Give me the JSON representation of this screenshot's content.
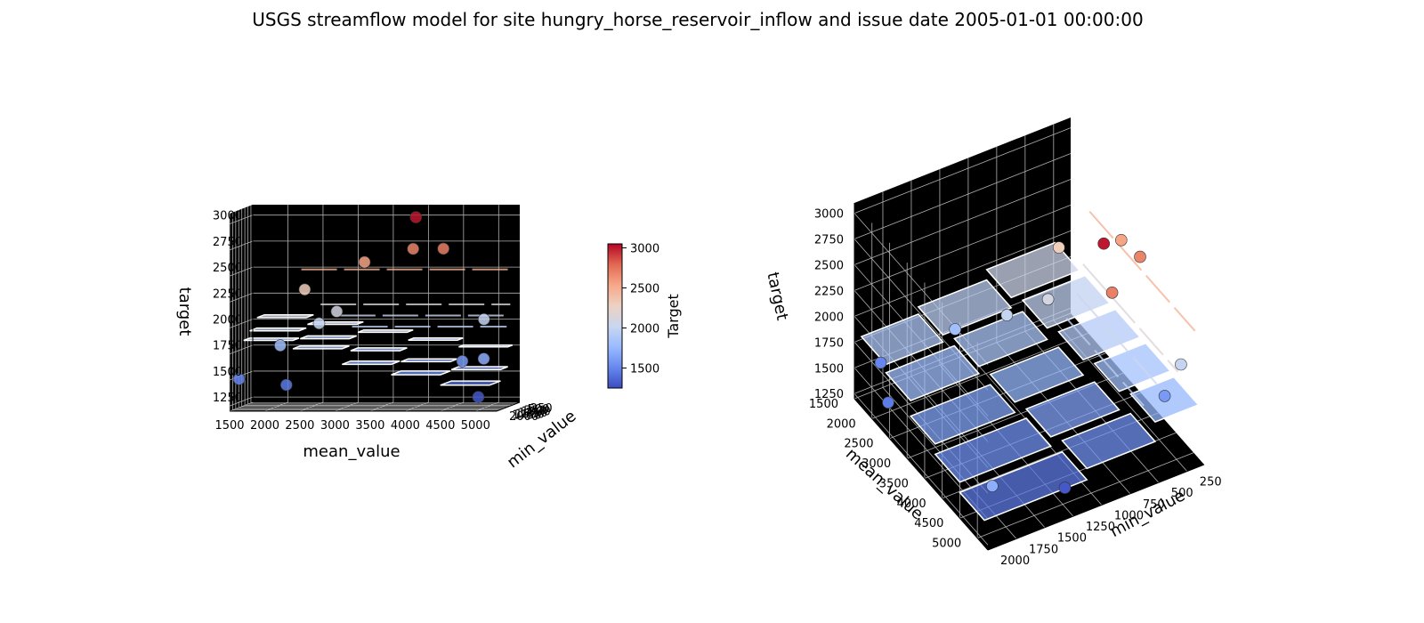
{
  "figure": {
    "title": "USGS streamflow model for site hungry_horse_reservoir_inflow and issue date 2005-01-01 00:00:00"
  },
  "colormap": {
    "name": "coolwarm",
    "stops": [
      "#3b4cc0",
      "#6788ee",
      "#9abbff",
      "#c9d7f0",
      "#edd1c2",
      "#f7a889",
      "#e26952",
      "#b40426"
    ]
  },
  "chart_data": {
    "type": "scatter",
    "title": "USGS streamflow model for site hungry_horse_reservoir_inflow and issue date 2005-01-01 00:00:00",
    "xlabel": "mean_value",
    "ylabel": "min_value",
    "zlabel": "target",
    "xlim": [
      1500,
      5300
    ],
    "ylim": [
      2000,
      100
    ],
    "zlim": [
      1200,
      3100
    ],
    "x_ticks": [
      "1500",
      "2000",
      "2500",
      "3000",
      "3500",
      "4000",
      "4500",
      "5000"
    ],
    "y_ticks": [
      "250",
      "500",
      "750",
      "1000",
      "1250",
      "1500",
      "1750",
      "2000"
    ],
    "z_ticks": [
      "1250",
      "1500",
      "1750",
      "2000",
      "2250",
      "2500",
      "2750",
      "3000"
    ],
    "grid": true,
    "colorbar": {
      "label": "Target",
      "range": [
        1250,
        3050
      ],
      "ticks": [
        "1500",
        "2000",
        "2500",
        "3000"
      ]
    },
    "points": [
      {
        "x": 1600,
        "y": 1800,
        "z": 1500
      },
      {
        "x": 2100,
        "y": 1300,
        "z": 1800
      },
      {
        "x": 2300,
        "y": 1950,
        "z": 1450
      },
      {
        "x": 2600,
        "y": 1000,
        "z": 2000
      },
      {
        "x": 2300,
        "y": 450,
        "z": 2300
      },
      {
        "x": 3800,
        "y": 200,
        "z": 2680
      },
      {
        "x": 3100,
        "y": 150,
        "z": 2550
      },
      {
        "x": 3900,
        "y": 550,
        "z": 3000
      },
      {
        "x": 4900,
        "y": 1200,
        "z": 1300
      },
      {
        "x": 4500,
        "y": 200,
        "z": 1600
      },
      {
        "x": 4800,
        "y": 150,
        "z": 2000
      },
      {
        "x": 5100,
        "y": 1900,
        "z": 1700
      },
      {
        "x": 4300,
        "y": 600,
        "z": 2700
      },
      {
        "x": 2800,
        "y": 700,
        "z": 2100
      }
    ],
    "surface": {
      "description_free": true,
      "cells": [
        {
          "x": [
            1700,
            2400
          ],
          "y": [
            1500,
            2000
          ],
          "z": 1880
        },
        {
          "x": [
            2400,
            3100
          ],
          "y": [
            1400,
            2000
          ],
          "z": 1800
        },
        {
          "x": [
            3100,
            3800
          ],
          "y": [
            1300,
            2000
          ],
          "z": 1650
        },
        {
          "x": [
            3800,
            4500
          ],
          "y": [
            1200,
            2000
          ],
          "z": 1550
        },
        {
          "x": [
            4500,
            5200
          ],
          "y": [
            1100,
            2000
          ],
          "z": 1450
        },
        {
          "x": [
            1700,
            2400
          ],
          "y": [
            900,
            1500
          ],
          "z": 1950
        },
        {
          "x": [
            2400,
            3100
          ],
          "y": [
            800,
            1400
          ],
          "z": 1870
        },
        {
          "x": [
            3100,
            3800
          ],
          "y": [
            700,
            1300
          ],
          "z": 1750
        },
        {
          "x": [
            3800,
            4500
          ],
          "y": [
            600,
            1200
          ],
          "z": 1640
        },
        {
          "x": [
            4500,
            5200
          ],
          "y": [
            500,
            1100
          ],
          "z": 1560
        },
        {
          "x": [
            1700,
            2400
          ],
          "y": [
            300,
            900
          ],
          "z": 2050
        },
        {
          "x": [
            2400,
            3100
          ],
          "y": [
            250,
            800
          ],
          "z": 1980
        },
        {
          "x": [
            3100,
            3800
          ],
          "y": [
            200,
            700
          ],
          "z": 1900
        },
        {
          "x": [
            3800,
            4500
          ],
          "y": [
            150,
            600
          ],
          "z": 1820
        },
        {
          "x": [
            4500,
            5200
          ],
          "y": [
            120,
            500
          ],
          "z": 1750
        }
      ]
    },
    "lines": [
      {
        "x": [
          2200,
          5200
        ],
        "y": [
          150,
          150
        ],
        "z": 2480
      },
      {
        "x": [
          2500,
          5200
        ],
        "y": [
          300,
          300
        ],
        "z": 2150
      },
      {
        "x": [
          2800,
          5200
        ],
        "y": [
          450,
          450
        ],
        "z": 2050
      },
      {
        "x": [
          3000,
          5200
        ],
        "y": [
          600,
          600
        ],
        "z": 1950
      }
    ]
  }
}
